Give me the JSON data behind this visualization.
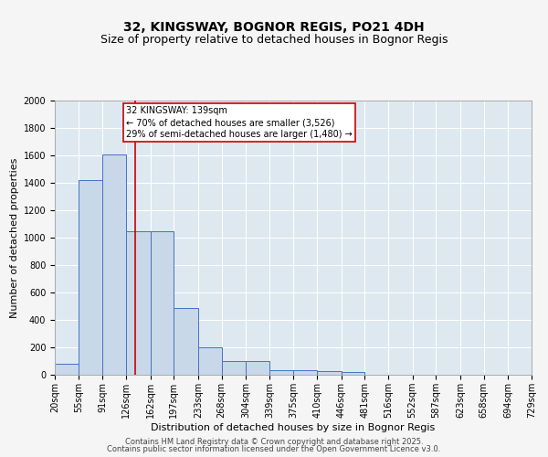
{
  "title_line1": "32, KINGSWAY, BOGNOR REGIS, PO21 4DH",
  "title_line2": "Size of property relative to detached houses in Bognor Regis",
  "xlabel": "Distribution of detached houses by size in Bognor Regis",
  "ylabel": "Number of detached properties",
  "bin_labels": [
    "20sqm",
    "55sqm",
    "91sqm",
    "126sqm",
    "162sqm",
    "197sqm",
    "233sqm",
    "268sqm",
    "304sqm",
    "339sqm",
    "375sqm",
    "410sqm",
    "446sqm",
    "481sqm",
    "516sqm",
    "552sqm",
    "587sqm",
    "623sqm",
    "658sqm",
    "694sqm",
    "729sqm"
  ],
  "bin_edges": [
    20,
    55,
    91,
    126,
    162,
    197,
    233,
    268,
    304,
    339,
    375,
    410,
    446,
    481,
    516,
    552,
    587,
    623,
    658,
    694,
    729
  ],
  "bar_heights": [
    80,
    1420,
    1610,
    1050,
    1050,
    490,
    200,
    100,
    100,
    35,
    35,
    25,
    20,
    0,
    0,
    0,
    0,
    0,
    0,
    0
  ],
  "bar_color": "#c8d8e8",
  "bar_edge_color": "#4472c4",
  "ylim": [
    0,
    2000
  ],
  "yticks": [
    0,
    200,
    400,
    600,
    800,
    1000,
    1200,
    1400,
    1600,
    1800,
    2000
  ],
  "property_size": 139,
  "red_line_color": "#cc0000",
  "annotation_text": "32 KINGSWAY: 139sqm\n← 70% of detached houses are smaller (3,526)\n29% of semi-detached houses are larger (1,480) →",
  "annotation_box_color": "#cc0000",
  "bg_color": "#dde8f0",
  "fig_bg_color": "#f5f5f5",
  "grid_color": "#ffffff",
  "footer_line1": "Contains HM Land Registry data © Crown copyright and database right 2025.",
  "footer_line2": "Contains public sector information licensed under the Open Government Licence v3.0.",
  "title_fontsize": 10,
  "subtitle_fontsize": 9,
  "axis_label_fontsize": 8,
  "tick_fontsize": 7,
  "annotation_fontsize": 7,
  "footer_fontsize": 6
}
